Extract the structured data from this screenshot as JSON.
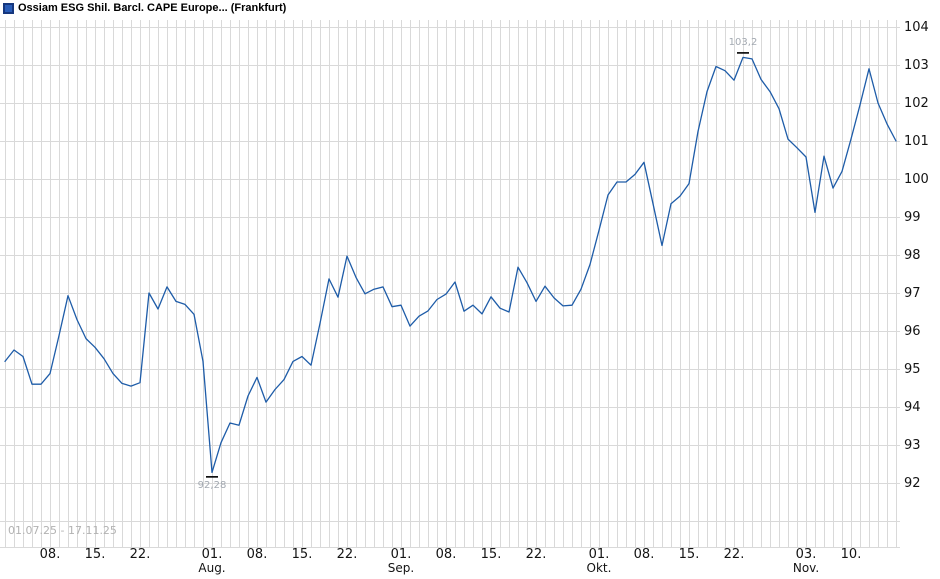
{
  "header": {
    "title": "Ossiam ESG Shil. Barcl. CAPE Europe... (Frankfurt)"
  },
  "colors": {
    "line": "#1e5ca8",
    "grid": "#d9d9d9",
    "legend_fill": "#2a5db8",
    "legend_border": "#16377e",
    "annotation_text": "#a3a9b1",
    "period_text": "#b2b2b2",
    "axis_text": "#141414",
    "marker": "#000000"
  },
  "chart_data": {
    "type": "line",
    "title": "Ossiam ESG Shil. Barcl. CAPE Europe... (Frankfurt)",
    "x_period": "01.07.25 - 17.11.25",
    "grid": true,
    "legend_position": "top-left",
    "ylim": [
      90.3,
      104.2
    ],
    "y_ticks": [
      "92",
      "93",
      "94",
      "95",
      "96",
      "97",
      "98",
      "99",
      "100",
      "101",
      "102",
      "103",
      "104"
    ],
    "x_ticks": [
      {
        "label": "08.",
        "index": 5
      },
      {
        "label": "15.",
        "index": 10
      },
      {
        "label": "22.",
        "index": 15
      },
      {
        "label": "01.",
        "index": 23,
        "month": "Aug."
      },
      {
        "label": "08.",
        "index": 28
      },
      {
        "label": "15.",
        "index": 33
      },
      {
        "label": "22.",
        "index": 38
      },
      {
        "label": "01.",
        "index": 44,
        "month": "Sep."
      },
      {
        "label": "08.",
        "index": 49
      },
      {
        "label": "15.",
        "index": 54
      },
      {
        "label": "22.",
        "index": 59
      },
      {
        "label": "01.",
        "index": 66,
        "month": "Okt."
      },
      {
        "label": "08.",
        "index": 71
      },
      {
        "label": "15.",
        "index": 76
      },
      {
        "label": "22.",
        "index": 81
      },
      {
        "label": "03.",
        "index": 89,
        "month": "Nov."
      },
      {
        "label": "10.",
        "index": 94
      }
    ],
    "series": [
      {
        "name": "Ossiam ESG Shil. Barcl. CAPE Europe... (Frankfurt)",
        "values": [
          95.2,
          95.5,
          95.33,
          94.6,
          94.6,
          94.88,
          95.88,
          96.93,
          96.3,
          95.8,
          95.57,
          95.27,
          94.88,
          94.62,
          94.55,
          94.64,
          97.0,
          96.58,
          97.16,
          96.78,
          96.7,
          96.44,
          95.2,
          92.28,
          93.06,
          93.58,
          93.52,
          94.29,
          94.78,
          94.13,
          94.46,
          94.72,
          95.2,
          95.33,
          95.1,
          96.2,
          97.37,
          96.89,
          97.97,
          97.41,
          96.98,
          97.1,
          97.16,
          96.64,
          96.68,
          96.13,
          96.39,
          96.53,
          96.83,
          96.97,
          97.29,
          96.52,
          96.68,
          96.45,
          96.9,
          96.6,
          96.5,
          97.68,
          97.27,
          96.78,
          97.18,
          96.87,
          96.66,
          96.68,
          97.1,
          97.75,
          98.65,
          99.58,
          99.92,
          99.92,
          100.12,
          100.44,
          99.35,
          98.25,
          99.35,
          99.55,
          99.88,
          101.25,
          102.3,
          102.96,
          102.85,
          102.6,
          103.2,
          103.16,
          102.62,
          102.3,
          101.85,
          101.05,
          100.82,
          100.58,
          99.12,
          100.6,
          99.76,
          100.2,
          101.05,
          101.95,
          102.9,
          102.0,
          101.45,
          101.0
        ]
      }
    ],
    "annotations": {
      "high": {
        "label": "103,2",
        "value": 103.2,
        "index": 82
      },
      "low": {
        "label": "92,28",
        "value": 92.28,
        "index": 23
      }
    }
  }
}
